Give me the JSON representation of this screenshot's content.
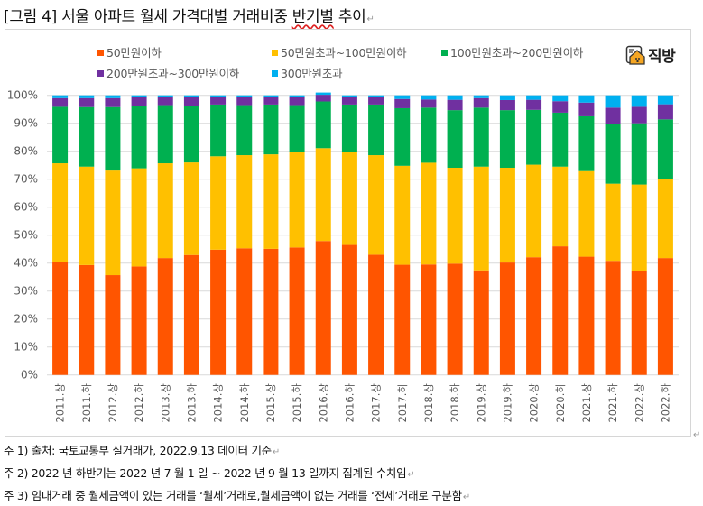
{
  "document": {
    "title_prefix": "[그림 4] 서울 아파트 월세 가격대별 거래비중 ",
    "title_underlined": "반기별",
    "title_suffix": " 추이",
    "paragraph_mark": "↵",
    "notes": [
      "주 1) 출처: 국토교통부 실거래가, 2022.9.13  데이터 기준",
      "주 2) 2022 년 하반기는 2022 년 7 월 1 일  ~ 2022 년 9 월 13 일까지 집계된 수치임",
      "주 3) 임대거래 중 월세금액이 있는 거래를 ‘월세’거래로,월세금액이 없는 거래를 ‘전세’거래로 구분함"
    ]
  },
  "logo": {
    "text": "직방",
    "icon": "house-logo-icon",
    "color": "#f5a623"
  },
  "chart_data": {
    "type": "bar",
    "stacked": true,
    "percent_stacked": true,
    "title": "",
    "xlabel": "",
    "ylabel": "",
    "ylim": [
      0,
      100
    ],
    "yticks": [
      "0%",
      "10%",
      "20%",
      "30%",
      "40%",
      "50%",
      "60%",
      "70%",
      "80%",
      "90%",
      "100%"
    ],
    "grid": true,
    "legend_position": "top",
    "categories": [
      "2011.상",
      "2011.하",
      "2012.상",
      "2012.하",
      "2013.상",
      "2013.하",
      "2014.상",
      "2014.하",
      "2015.상",
      "2015.하",
      "2016.상",
      "2016.하",
      "2017.상",
      "2017.하",
      "2018.상",
      "2018.하",
      "2019.상",
      "2019.하",
      "2020.상",
      "2020.하",
      "2021.상",
      "2021.하",
      "2022.상",
      "2022.하"
    ],
    "series": [
      {
        "name": "50만원이하",
        "color": "#ff5500",
        "values": [
          40.5,
          39.3,
          35.7,
          38.8,
          41.8,
          42.9,
          44.8,
          45.3,
          45.1,
          45.6,
          47.9,
          46.5,
          43.0,
          39.4,
          39.5,
          39.8,
          37.4,
          40.2,
          42.1,
          46.0,
          42.3,
          40.8,
          37.2,
          41.8
        ]
      },
      {
        "name": "50만원초과~100만원이하",
        "color": "#ffc000",
        "values": [
          35.2,
          35.2,
          37.4,
          35.1,
          33.9,
          33.1,
          33.4,
          33.3,
          33.8,
          34.0,
          33.2,
          33.1,
          35.6,
          35.4,
          36.4,
          34.3,
          37.1,
          33.9,
          33.1,
          28.5,
          30.6,
          27.6,
          30.9,
          28.1
        ]
      },
      {
        "name": "100만원초과~200만원이하",
        "color": "#00b050",
        "values": [
          20.2,
          21.3,
          22.7,
          22.4,
          20.8,
          20.1,
          18.5,
          17.9,
          17.8,
          16.9,
          16.7,
          17.1,
          18.1,
          20.6,
          19.7,
          20.6,
          21.1,
          20.6,
          19.6,
          19.3,
          19.6,
          21.3,
          21.9,
          21.5
        ]
      },
      {
        "name": "200만원초과~300만원이하",
        "color": "#7030a0",
        "values": [
          3.1,
          3.2,
          3.2,
          3.0,
          3.0,
          3.2,
          2.8,
          3.0,
          2.6,
          2.8,
          2.4,
          2.6,
          2.6,
          3.3,
          2.9,
          3.7,
          3.4,
          3.6,
          3.6,
          4.1,
          4.9,
          5.9,
          5.9,
          5.4
        ]
      },
      {
        "name": "300만원초과",
        "color": "#00b0f0",
        "values": [
          1.0,
          1.0,
          1.0,
          0.7,
          0.5,
          0.7,
          0.5,
          0.5,
          0.7,
          0.7,
          0.8,
          0.7,
          0.7,
          1.3,
          1.5,
          1.6,
          1.0,
          1.7,
          1.6,
          2.1,
          2.6,
          4.4,
          4.1,
          3.2
        ]
      }
    ]
  }
}
